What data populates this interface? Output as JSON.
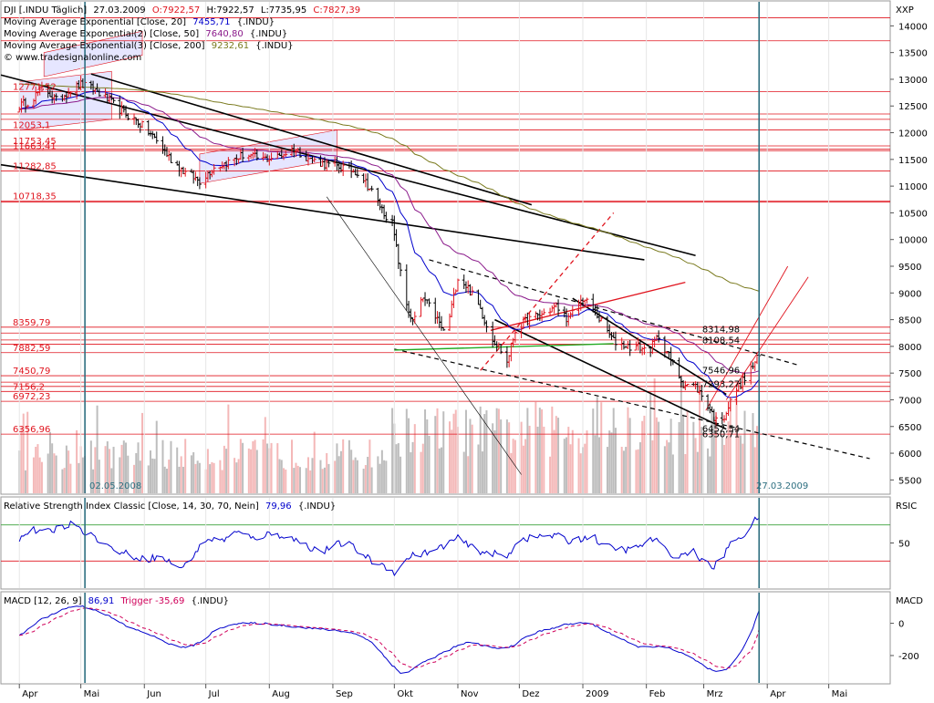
{
  "price_panel": {
    "header": {
      "symbol": "DJI [.INDU  Täglich]",
      "date": "27.03.2009",
      "open": "O:7922,57",
      "high": "H:7922,57",
      "low": "L:7735,95",
      "close": "C:7827,39",
      "ma20": "Moving Average Exponential [Close, 20]",
      "ma20_value": "7455,71",
      "ma20_symbol": "{.INDU}",
      "ma50": "Moving Average Exponential(2) [Close, 50]",
      "ma50_value": "7640,80",
      "ma50_symbol": "{.INDU}",
      "ma200": "Moving Average Exponential(3) [Close, 200]",
      "ma200_value": "9232,61",
      "ma200_symbol": "{.INDU}",
      "website": "© www.tradesignalonline.com"
    },
    "axis_label": "XXP",
    "left_date": "02.05.2008",
    "right_date": "27.03.2009"
  },
  "rsi_panel": {
    "header": "Relative Strength Index Classic [Close, 14, 30, 70, Nein]",
    "value": "79,96",
    "symbol": "{.INDU}",
    "axis_label": "RSIC"
  },
  "macd_panel": {
    "header": "MACD [12, 26, 9]",
    "value": "86,91",
    "trigger": "Trigger -35,69",
    "symbol": "{.INDU}",
    "axis_label": "MACD"
  },
  "colors": {
    "price": "#000000",
    "level_line": "#e0141e",
    "ma20": "#0000cc",
    "ma50": "#8b1a8b",
    "ma200": "#7a7a1e",
    "rsi": "#0000cc",
    "macd": "#0000cc",
    "trigger": "#d0005a",
    "volume_up": "#f4b8b8",
    "volume_down": "#bdbdbd",
    "marker": "#2e6f80",
    "channel": "#9aa0ff"
  },
  "chart_data": [
    {
      "type": "candlestick",
      "y_ticks": [
        5500,
        6000,
        6500,
        7000,
        7500,
        8000,
        8500,
        9000,
        9500,
        10000,
        10500,
        11000,
        11500,
        12000,
        12500,
        13000,
        13500,
        14000
      ],
      "ylim": [
        5250,
        14450
      ],
      "months": [
        "Apr",
        "Mai",
        "Jun",
        "Jul",
        "Aug",
        "Sep",
        "Okt",
        "Nov",
        "Dez",
        "2009",
        "Feb",
        "Mrz",
        "Apr",
        "Mai"
      ],
      "month_days": [
        0,
        30,
        61,
        91,
        122,
        153,
        183,
        214,
        244,
        275,
        306,
        334,
        365,
        395
      ],
      "xlim_days": [
        -9,
        425
      ],
      "anchors": [
        [
          0,
          12500
        ],
        [
          5,
          12600
        ],
        [
          12,
          12850
        ],
        [
          18,
          12600
        ],
        [
          25,
          12800
        ],
        [
          30,
          12900
        ],
        [
          37,
          12800
        ],
        [
          44,
          12600
        ],
        [
          50,
          12400
        ],
        [
          58,
          12200
        ],
        [
          66,
          11900
        ],
        [
          74,
          11500
        ],
        [
          81,
          11250
        ],
        [
          88,
          11100
        ],
        [
          95,
          11350
        ],
        [
          102,
          11450
        ],
        [
          110,
          11600
        ],
        [
          118,
          11500
        ],
        [
          126,
          11550
        ],
        [
          134,
          11700
        ],
        [
          142,
          11500
        ],
        [
          150,
          11400
        ],
        [
          158,
          11350
        ],
        [
          166,
          11250
        ],
        [
          172,
          10900
        ],
        [
          178,
          10500
        ],
        [
          182,
          10300
        ],
        [
          185,
          9600
        ],
        [
          188,
          8900
        ],
        [
          192,
          8450
        ],
        [
          197,
          8900
        ],
        [
          202,
          8650
        ],
        [
          208,
          8200
        ],
        [
          214,
          9300
        ],
        [
          219,
          9100
        ],
        [
          225,
          8700
        ],
        [
          230,
          8200
        ],
        [
          234,
          8000
        ],
        [
          238,
          7700
        ],
        [
          242,
          8300
        ],
        [
          248,
          8500
        ],
        [
          255,
          8600
        ],
        [
          262,
          8750
        ],
        [
          268,
          8500
        ],
        [
          275,
          8900
        ],
        [
          280,
          8700
        ],
        [
          285,
          8400
        ],
        [
          290,
          8100
        ],
        [
          297,
          8000
        ],
        [
          302,
          8000
        ],
        [
          307,
          7900
        ],
        [
          312,
          8200
        ],
        [
          318,
          7750
        ],
        [
          324,
          7300
        ],
        [
          330,
          7250
        ],
        [
          336,
          6900
        ],
        [
          340,
          6600
        ],
        [
          344,
          6700
        ],
        [
          350,
          7200
        ],
        [
          355,
          7450
        ],
        [
          359,
          7700
        ],
        [
          361,
          7827
        ]
      ],
      "labeled_levels": [
        {
          "value": 12771.5,
          "label": "12771,52"
        },
        {
          "value": 12053.1,
          "label": "12053,1"
        },
        {
          "value": 11753.45,
          "label": "11753,45"
        },
        {
          "value": 11663.41,
          "label": "11663,41"
        },
        {
          "value": 11282.85,
          "label": "11282,85"
        },
        {
          "value": 10718.35,
          "label": "10718,35"
        },
        {
          "value": 8359.79,
          "label": "8359,79"
        },
        {
          "value": 7882.59,
          "label": "7882,59"
        },
        {
          "value": 7450.79,
          "label": "7450,79"
        },
        {
          "value": 7156.2,
          "label": "7156,2"
        },
        {
          "value": 6972.23,
          "label": "6972,23"
        },
        {
          "value": 6356.96,
          "label": "6356,96"
        }
      ],
      "unlabeled_levels": [
        14150,
        13720,
        12350,
        12250,
        11690,
        10700,
        8250,
        8120,
        8040,
        7330,
        7250
      ],
      "annotations": [
        {
          "day": 331,
          "value": 8314.98,
          "label": "8314,98"
        },
        {
          "day": 331,
          "value": 8108.54,
          "label": "8108,54"
        },
        {
          "day": 331,
          "value": 7546.96,
          "label": "7546,96"
        },
        {
          "day": 331,
          "value": 7293.27,
          "label": "7293,27"
        },
        {
          "day": 331,
          "value": 6452.54,
          "label": "6452,54"
        },
        {
          "day": 331,
          "value": 6350.71,
          "label": "6350,71"
        }
      ]
    },
    {
      "type": "line",
      "title": "Relative Strength Index Classic",
      "y_ticks": [
        50
      ],
      "ylim": [
        0,
        100
      ],
      "thresholds": [
        30,
        70
      ],
      "anchors": [
        [
          0,
          55
        ],
        [
          6,
          65
        ],
        [
          12,
          60
        ],
        [
          20,
          68
        ],
        [
          28,
          72
        ],
        [
          32,
          62
        ],
        [
          38,
          55
        ],
        [
          44,
          45
        ],
        [
          50,
          40
        ],
        [
          56,
          35
        ],
        [
          62,
          32
        ],
        [
          68,
          35
        ],
        [
          74,
          28
        ],
        [
          80,
          22
        ],
        [
          86,
          40
        ],
        [
          92,
          55
        ],
        [
          98,
          52
        ],
        [
          106,
          62
        ],
        [
          114,
          55
        ],
        [
          122,
          60
        ],
        [
          130,
          58
        ],
        [
          136,
          52
        ],
        [
          142,
          45
        ],
        [
          148,
          40
        ],
        [
          154,
          48
        ],
        [
          160,
          50
        ],
        [
          166,
          40
        ],
        [
          172,
          30
        ],
        [
          178,
          25
        ],
        [
          183,
          18
        ],
        [
          186,
          22
        ],
        [
          190,
          35
        ],
        [
          195,
          38
        ],
        [
          202,
          40
        ],
        [
          209,
          50
        ],
        [
          214,
          55
        ],
        [
          220,
          46
        ],
        [
          226,
          40
        ],
        [
          232,
          38
        ],
        [
          238,
          34
        ],
        [
          244,
          56
        ],
        [
          250,
          55
        ],
        [
          256,
          58
        ],
        [
          262,
          58
        ],
        [
          268,
          52
        ],
        [
          274,
          55
        ],
        [
          280,
          58
        ],
        [
          285,
          46
        ],
        [
          292,
          44
        ],
        [
          298,
          42
        ],
        [
          304,
          48
        ],
        [
          310,
          55
        ],
        [
          316,
          40
        ],
        [
          322,
          35
        ],
        [
          328,
          42
        ],
        [
          334,
          30
        ],
        [
          338,
          22
        ],
        [
          342,
          30
        ],
        [
          348,
          52
        ],
        [
          354,
          60
        ],
        [
          358,
          72
        ],
        [
          361,
          80
        ]
      ]
    },
    {
      "type": "line",
      "title": "MACD",
      "y_ticks": [
        0,
        -200
      ],
      "ylim": [
        -370,
        190
      ],
      "macd_anchors": [
        [
          0,
          -80
        ],
        [
          10,
          20
        ],
        [
          20,
          80
        ],
        [
          27,
          110
        ],
        [
          33,
          100
        ],
        [
          40,
          70
        ],
        [
          47,
          20
        ],
        [
          54,
          -30
        ],
        [
          62,
          -60
        ],
        [
          70,
          -110
        ],
        [
          78,
          -150
        ],
        [
          85,
          -140
        ],
        [
          90,
          -100
        ],
        [
          96,
          -40
        ],
        [
          102,
          -10
        ],
        [
          110,
          0
        ],
        [
          118,
          0
        ],
        [
          126,
          -10
        ],
        [
          134,
          -20
        ],
        [
          142,
          -30
        ],
        [
          150,
          -40
        ],
        [
          158,
          -50
        ],
        [
          166,
          -70
        ],
        [
          172,
          -120
        ],
        [
          178,
          -200
        ],
        [
          182,
          -260
        ],
        [
          186,
          -310
        ],
        [
          190,
          -300
        ],
        [
          196,
          -250
        ],
        [
          204,
          -200
        ],
        [
          212,
          -150
        ],
        [
          218,
          -120
        ],
        [
          224,
          -130
        ],
        [
          230,
          -150
        ],
        [
          236,
          -160
        ],
        [
          242,
          -130
        ],
        [
          248,
          -80
        ],
        [
          254,
          -50
        ],
        [
          260,
          -30
        ],
        [
          266,
          -10
        ],
        [
          272,
          0
        ],
        [
          276,
          5
        ],
        [
          282,
          -20
        ],
        [
          288,
          -60
        ],
        [
          294,
          -100
        ],
        [
          300,
          -140
        ],
        [
          306,
          -150
        ],
        [
          312,
          -140
        ],
        [
          318,
          -160
        ],
        [
          324,
          -190
        ],
        [
          330,
          -230
        ],
        [
          336,
          -280
        ],
        [
          341,
          -310
        ],
        [
          346,
          -280
        ],
        [
          352,
          -180
        ],
        [
          358,
          -30
        ],
        [
          361,
          80
        ]
      ]
    }
  ]
}
